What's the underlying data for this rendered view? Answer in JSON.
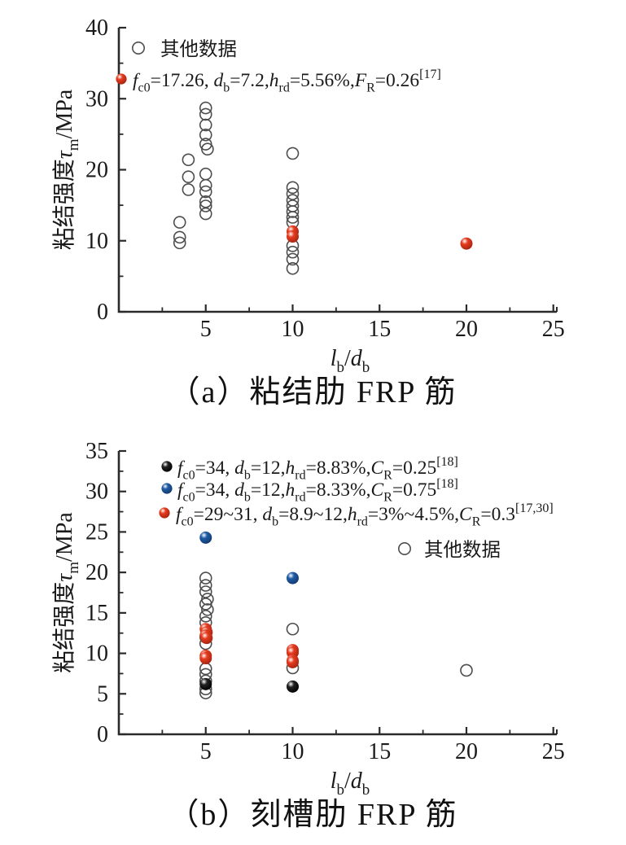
{
  "figure": {
    "background": "#ffffff"
  },
  "colors": {
    "axis": "#2a2a2a",
    "text": "#1a1a1a",
    "open_marker_stroke": "#4d4d4d",
    "red": "#e63b1f",
    "red_dark": "#a32410",
    "blue": "#1e5ca6",
    "blue_dark": "#123a6b",
    "black": "#222222",
    "black_dark": "#000000"
  },
  "chart_data": [
    {
      "type": "scatter",
      "caption": "（a）粘结肋 FRP 筋",
      "xlabel": "l_(b)/d_(b)",
      "ylabel": "粘结强度τ_(m)/MPa",
      "xlim": [
        0,
        25.2
      ],
      "ylim": [
        0,
        40
      ],
      "xticks": [
        5,
        10,
        15,
        20,
        25
      ],
      "yticks": [
        0,
        10,
        20,
        30,
        40
      ],
      "x_minor_ticks": [
        2.5,
        7.5,
        12.5,
        17.5,
        22.5
      ],
      "y_minor_ticks": [
        5,
        15,
        25,
        35
      ],
      "grid": false,
      "legend_position": "top-left",
      "legend": [
        {
          "marker": "open",
          "label": "其他数据"
        },
        {
          "marker": "red",
          "label": "f_(c0)=17.26, d_(b)=7.2,h_(rd)=5.56%,F_(R)=0.26^[17]"
        }
      ],
      "series": [
        {
          "name": "其他数据",
          "marker": "open",
          "points": [
            [
              3.5,
              12.6
            ],
            [
              3.5,
              10.5
            ],
            [
              3.5,
              9.7
            ],
            [
              4.0,
              21.4
            ],
            [
              4.0,
              19.0
            ],
            [
              4.0,
              17.2
            ],
            [
              5,
              28.7
            ],
            [
              5,
              27.8
            ],
            [
              5,
              26.3
            ],
            [
              5,
              24.9
            ],
            [
              5,
              23.6
            ],
            [
              5.1,
              22.9
            ],
            [
              5,
              19.4
            ],
            [
              5,
              17.8
            ],
            [
              5,
              16.9
            ],
            [
              5,
              15.5
            ],
            [
              5,
              14.9
            ],
            [
              5,
              13.8
            ],
            [
              10,
              22.3
            ],
            [
              10,
              17.5
            ],
            [
              10,
              16.6
            ],
            [
              10,
              15.7
            ],
            [
              10,
              14.9
            ],
            [
              10,
              14.1
            ],
            [
              10,
              13.3
            ],
            [
              10,
              12.6
            ],
            [
              10,
              9.3
            ],
            [
              10,
              8.4
            ],
            [
              10,
              7.4
            ],
            [
              10,
              6.1
            ]
          ]
        },
        {
          "name": "f_(c0)=17.26, d_(b)=7.2,h_(rd)=5.56%,F_(R)=0.26^[17]",
          "marker": "red",
          "points": [
            [
              10,
              11.3
            ],
            [
              10,
              10.6
            ],
            [
              20,
              9.6
            ]
          ]
        }
      ]
    },
    {
      "type": "scatter",
      "caption": "（b）刻槽肋 FRP 筋",
      "xlabel": "l_(b)/d_(b)",
      "ylabel": "粘结强度τ_(m)/MPa",
      "xlim": [
        0,
        25.2
      ],
      "ylim": [
        0,
        35
      ],
      "xticks": [
        5,
        10,
        15,
        20,
        25
      ],
      "yticks": [
        0,
        5,
        10,
        15,
        20,
        25,
        30,
        35
      ],
      "x_minor_ticks": [
        2.5,
        7.5,
        12.5,
        17.5,
        22.5
      ],
      "y_minor_ticks": [
        2.5,
        7.5,
        12.5,
        17.5,
        22.5,
        27.5,
        32.5
      ],
      "grid": false,
      "legend_position": "top-left",
      "legend": [
        {
          "marker": "black",
          "label": "f_(c0)=34, d_(b)=12,h_(rd)=8.83%,C_(R)=0.25^[18]"
        },
        {
          "marker": "blue",
          "label": "f_(c0)=34, d_(b)=12,h_(rd)=8.33%,C_(R)=0.75^[18]"
        },
        {
          "marker": "red",
          "label": "f_(c0)=29~31, d_(b)=8.9~12,h_(rd)=3%~4.5%,C_(R)=0.3^[17,30]"
        },
        {
          "marker": "open",
          "label": "其他数据"
        }
      ],
      "series": [
        {
          "name": "其他数据",
          "marker": "open",
          "points": [
            [
              5,
              19.3
            ],
            [
              5,
              18.4
            ],
            [
              5,
              17.6
            ],
            [
              5.1,
              16.7
            ],
            [
              5,
              16.1
            ],
            [
              5.1,
              15.4
            ],
            [
              5,
              14.6
            ],
            [
              5,
              13.8
            ],
            [
              5,
              12.0
            ],
            [
              5,
              11.2
            ],
            [
              5,
              8.1
            ],
            [
              5,
              7.4
            ],
            [
              5,
              6.6
            ],
            [
              5,
              5.6
            ],
            [
              5,
              5.1
            ],
            [
              10,
              13.0
            ],
            [
              10,
              8.2
            ],
            [
              20,
              7.9
            ]
          ]
        },
        {
          "name": "f_(c0)=34, d_(b)=12,h_(rd)=8.83%,C_(R)=0.25^[18]",
          "marker": "black",
          "points": [
            [
              5,
              6.2
            ],
            [
              10,
              5.9
            ]
          ]
        },
        {
          "name": "f_(c0)=34, d_(b)=12,h_(rd)=8.33%,C_(R)=0.75^[18]",
          "marker": "blue",
          "points": [
            [
              5,
              24.3
            ],
            [
              10,
              19.3
            ]
          ]
        },
        {
          "name": "f_(c0)=29~31, d_(b)=8.9~12,h_(rd)=3%~4.5%,C_(R)=0.3^[17,30]",
          "marker": "red",
          "points": [
            [
              5,
              13.0
            ],
            [
              5.05,
              12.6
            ],
            [
              5,
              12.2
            ],
            [
              5.05,
              11.9
            ],
            [
              5,
              9.7
            ],
            [
              5,
              9.4
            ],
            [
              10,
              10.4
            ],
            [
              10,
              10.1
            ],
            [
              10,
              9.1
            ],
            [
              10,
              8.9
            ]
          ]
        }
      ]
    }
  ]
}
